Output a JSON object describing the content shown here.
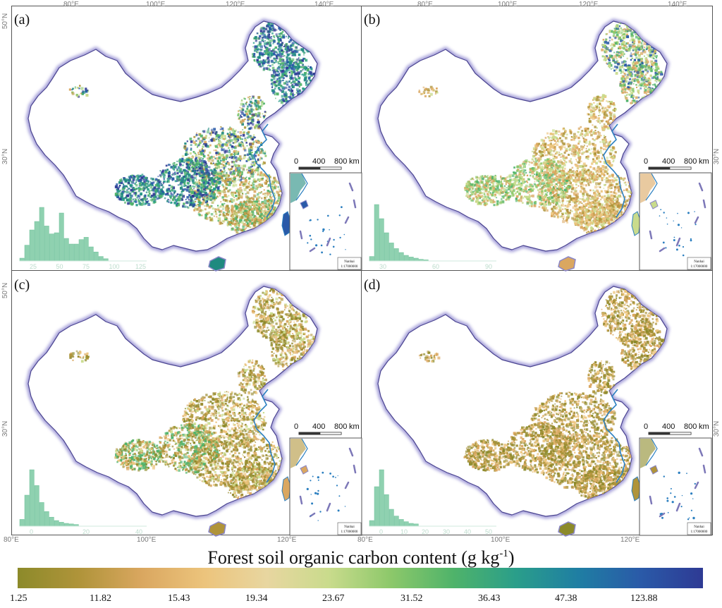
{
  "figure": {
    "colorbar": {
      "title_prefix": "Forest soil organic carbon content (g kg",
      "title_sup": "-1",
      "title_suffix": ")",
      "stops": [
        "#8c8a2a",
        "#b0943a",
        "#daa760",
        "#ecc47c",
        "#e8d6a0",
        "#c9db8c",
        "#8cc86a",
        "#4fb36a",
        "#2a9e8a",
        "#1f7ea3",
        "#2a5aa8",
        "#2e3a94"
      ],
      "tick_labels": [
        "1.25",
        "11.82",
        "15.43",
        "19.34",
        "23.67",
        "31.52",
        "36.43",
        "47.38",
        "123.88"
      ]
    },
    "axes": {
      "top_lon": [
        "80°E",
        "100°E",
        "120°E",
        "140°E"
      ],
      "bottom_lon": [
        "80°E",
        "100°E",
        "120°E"
      ],
      "lat": [
        "50°N",
        "30°N"
      ]
    },
    "inset": {
      "scale_ticks": [
        "0",
        "400",
        "800"
      ],
      "scale_unit": "km",
      "note_name": "Nanhai",
      "note_scale": "1:17000000"
    },
    "panels": [
      {
        "label": "(a)",
        "hist_ticks": [
          "25",
          "50",
          "75",
          "100",
          "125"
        ],
        "hist_values": [
          0.05,
          0.28,
          0.55,
          0.7,
          0.95,
          0.62,
          0.48,
          0.5,
          0.85,
          0.4,
          0.3,
          0.3,
          0.38,
          0.42,
          0.25,
          0.16,
          0.08,
          0.04
        ]
      },
      {
        "label": "(b)",
        "hist_ticks": [
          "30",
          "60",
          "90"
        ],
        "hist_values": [
          0.08,
          1.0,
          0.75,
          0.5,
          0.32,
          0.22,
          0.15,
          0.1,
          0.07,
          0.05,
          0.03,
          0.02
        ]
      },
      {
        "label": "(c)",
        "hist_ticks": [
          "0",
          "20",
          "40"
        ],
        "hist_values": [
          0.12,
          0.55,
          1.0,
          0.72,
          0.42,
          0.26,
          0.16,
          0.1,
          0.07,
          0.05,
          0.04,
          0.03
        ]
      },
      {
        "label": "(d)",
        "hist_ticks": [
          "0",
          "10",
          "20",
          "30",
          "40",
          "50"
        ],
        "hist_values": [
          0.1,
          0.7,
          1.0,
          0.56,
          0.3,
          0.18,
          0.12,
          0.08,
          0.05,
          0.04
        ]
      }
    ],
    "palettes": {
      "a": [
        "#1f8a7f",
        "#2a5aa8",
        "#4fb36a",
        "#8cc86a",
        "#daa760",
        "#c9db8c",
        "#2e3a94",
        "#b0943a"
      ],
      "b": [
        "#daa760",
        "#c9db8c",
        "#8cc86a",
        "#b0943a",
        "#4fb36a",
        "#ecc47c",
        "#2a9e8a"
      ],
      "c": [
        "#b0943a",
        "#daa760",
        "#8c8a2a",
        "#ecc47c",
        "#c9db8c",
        "#9a8c32"
      ],
      "d": [
        "#8c8a2a",
        "#b0943a",
        "#daa760",
        "#9a8c32",
        "#ecc47c"
      ]
    }
  }
}
